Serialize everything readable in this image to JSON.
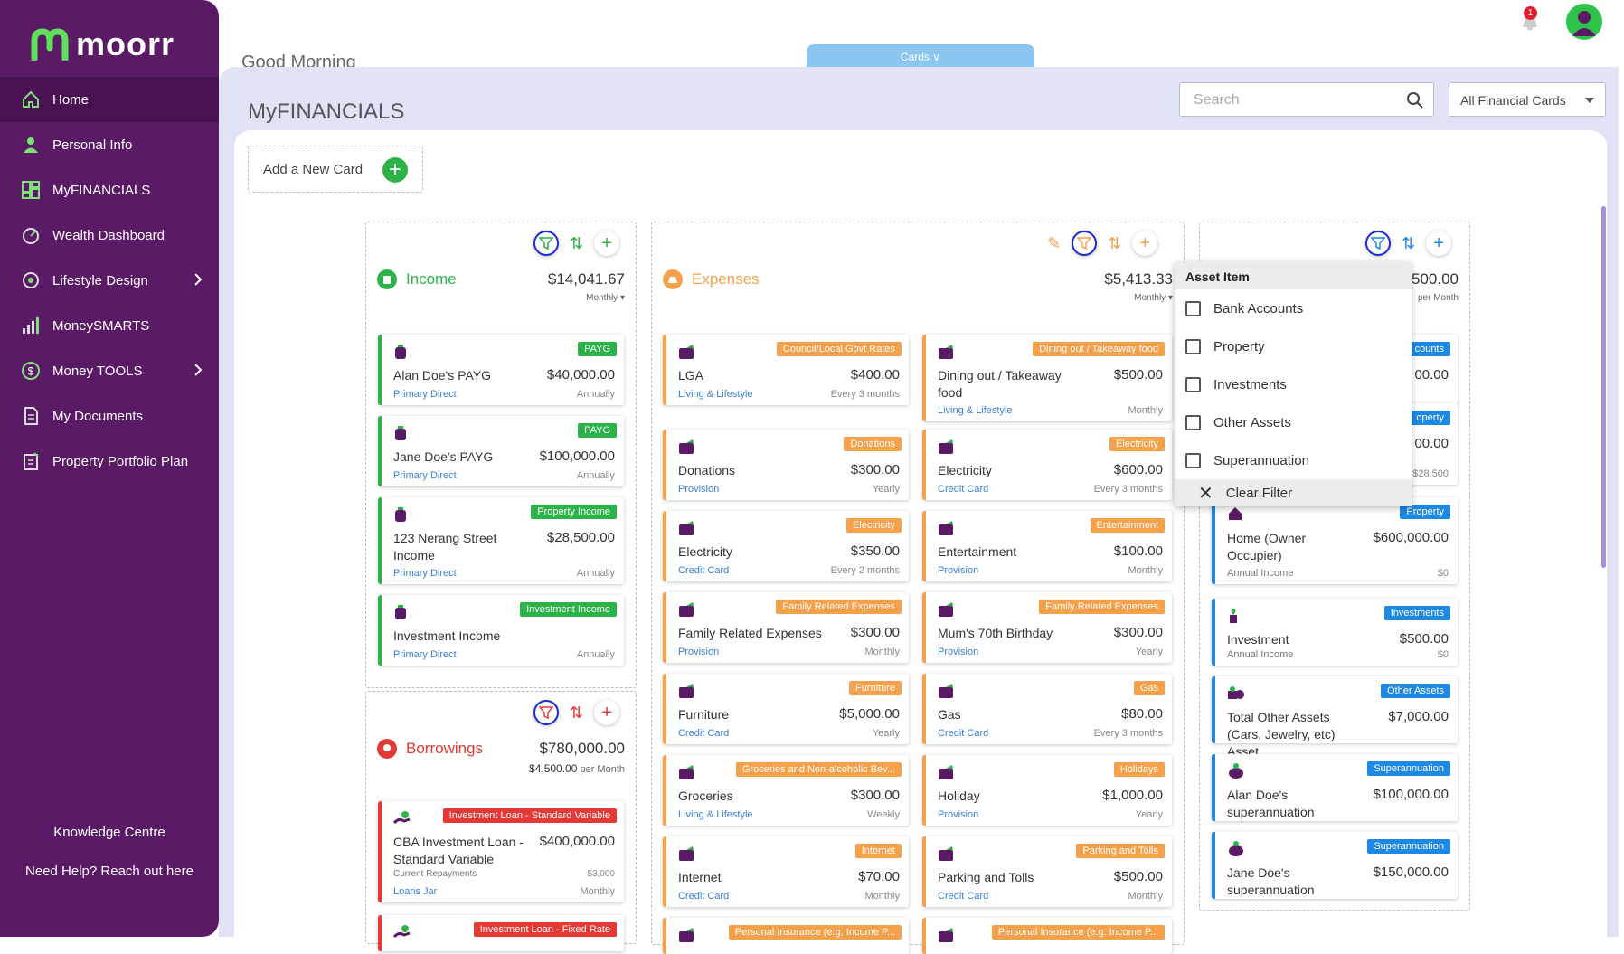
{
  "app": {
    "logo": "moorr",
    "greeting": "Good Morning",
    "cards_tab": "Cards",
    "notification_count": "1"
  },
  "colors": {
    "sidebar": "#5b1a66",
    "income": "#2bb34a",
    "expenses": "#f5a04a",
    "borrowings": "#e53935",
    "assets": "#1e88e5",
    "accent": "#5b1a66"
  },
  "sidebar": {
    "items": [
      {
        "label": "Home",
        "icon": "home-icon"
      },
      {
        "label": "Personal Info",
        "icon": "person-icon"
      },
      {
        "label": "MyFINANCIALS",
        "icon": "dashboard-icon"
      },
      {
        "label": "Wealth Dashboard",
        "icon": "gauge-icon"
      },
      {
        "label": "Lifestyle Design",
        "icon": "target-icon"
      },
      {
        "label": "MoneySMARTS",
        "icon": "bar-chart-icon"
      },
      {
        "label": "Money TOOLS",
        "icon": "dollar-icon"
      },
      {
        "label": "My Documents",
        "icon": "document-icon"
      },
      {
        "label": "Property Portfolio Plan",
        "icon": "clipboard-icon"
      }
    ],
    "knowledge": "Knowledge Centre",
    "help": "Need Help? Reach out here"
  },
  "page": {
    "title": "MyFINANCIALS",
    "search_placeholder": "Search",
    "filter": "All Financial Cards",
    "add_card": "Add a New Card"
  },
  "income": {
    "title": "Income",
    "total": "$14,041.67",
    "freq": "Monthly",
    "cards": [
      {
        "badge": "PAYG",
        "name": "Alan Doe's PAYG",
        "amount": "$40,000.00",
        "source": "Primary Direct",
        "period": "Annually"
      },
      {
        "badge": "PAYG",
        "name": "Jane Doe's PAYG",
        "amount": "$100,000.00",
        "source": "Primary Direct",
        "period": "Annually"
      },
      {
        "badge": "Property Income",
        "name": "123 Nerang Street Income",
        "amount": "$28,500.00",
        "source": "Primary Direct",
        "period": "Annually"
      },
      {
        "badge": "Investment Income",
        "name": "Investment Income",
        "amount": "",
        "source": "Primary Direct",
        "period": "Annually"
      }
    ]
  },
  "borrowings": {
    "title": "Borrowings",
    "total": "$780,000.00",
    "sub_amount": "$4,500.00",
    "sub_freq": "per Month",
    "cards": [
      {
        "badge": "Investment Loan - Standard Variable",
        "name": "CBA Investment Loan - Standard Variable",
        "amount": "$400,000.00",
        "repay_label": "Current Repayments",
        "repay_value": "$3,000",
        "source": "Loans Jar",
        "period": "Monthly"
      },
      {
        "badge": "Investment Loan - Fixed Rate"
      }
    ]
  },
  "expenses": {
    "title": "Expenses",
    "total": "$5,413.33",
    "freq": "Monthly",
    "cards_left": [
      {
        "badge": "Council/Local Govt Rates",
        "name": "LGA",
        "amount": "$400.00",
        "source": "Living & Lifestyle",
        "period": "Every 3 months"
      },
      {
        "badge": "Donations",
        "name": "Donations",
        "amount": "$300.00",
        "source": "Provision",
        "period": "Yearly"
      },
      {
        "badge": "Electricity",
        "name": "Electricity",
        "amount": "$350.00",
        "source": "Credit Card",
        "period": "Every 2 months"
      },
      {
        "badge": "Family Related Expenses",
        "name": "Family Related Expenses",
        "amount": "$300.00",
        "source": "Provision",
        "period": "Monthly"
      },
      {
        "badge": "Furniture",
        "name": "Furniture",
        "amount": "$5,000.00",
        "source": "Credit Card",
        "period": "Yearly"
      },
      {
        "badge": "Groceries and Non-alcoholic Bev...",
        "name": "Groceries",
        "amount": "$300.00",
        "source": "Living & Lifestyle",
        "period": "Weekly"
      },
      {
        "badge": "Internet",
        "name": "Internet",
        "amount": "$70.00",
        "source": "Credit Card",
        "period": "Monthly"
      },
      {
        "badge": "Personal Insurance (e.g. Income P..."
      }
    ],
    "cards_right": [
      {
        "badge": "Dining out / Takeaway food",
        "name": "Dining out / Takeaway food",
        "amount": "$500.00",
        "source": "Living & Lifestyle",
        "period": "Monthly"
      },
      {
        "badge": "Electricity",
        "name": "Electricity",
        "amount": "$600.00",
        "source": "Credit Card",
        "period": "Every 3 months"
      },
      {
        "badge": "Entertainment",
        "name": "Entertainment",
        "amount": "$100.00",
        "source": "Provision",
        "period": "Monthly"
      },
      {
        "badge": "Family Related Expenses",
        "name": "Mum's 70th Birthday",
        "amount": "$300.00",
        "source": "Provision",
        "period": "Yearly"
      },
      {
        "badge": "Gas",
        "name": "Gas",
        "amount": "$80.00",
        "source": "Credit Card",
        "period": "Every 3 months"
      },
      {
        "badge": "Holidays",
        "name": "Holiday",
        "amount": "$1,000.00",
        "source": "Provision",
        "period": "Yearly"
      },
      {
        "badge": "Parking and Tolls",
        "name": "Parking and Tolls",
        "amount": "$500.00",
        "source": "Credit Card",
        "period": "Monthly"
      },
      {
        "badge": "Personal Insurance (e.g. Income P..."
      }
    ]
  },
  "assets": {
    "total": "500.00",
    "freq": "per Month",
    "hidden_cards": [
      {
        "badge": "counts",
        "amount": "00.00"
      },
      {
        "badge": "operty",
        "amount": "00.00",
        "income": "$28,500"
      }
    ],
    "cards": [
      {
        "badge": "Property",
        "name": "Home (Owner Occupier)",
        "amount": "$600,000.00",
        "sub": "Annual Income",
        "subval": "$0"
      },
      {
        "badge": "Investments",
        "name": "Investment",
        "amount": "$500.00",
        "sub": "Annual Income",
        "subval": "$0"
      },
      {
        "badge": "Other Assets",
        "name": "Total Other Assets (Cars, Jewelry, etc) Asset",
        "amount": "$7,000.00"
      },
      {
        "badge": "Superannuation",
        "name": "Alan Doe's superannuation",
        "amount": "$100,000.00"
      },
      {
        "badge": "Superannuation",
        "name": "Jane Doe's superannuation",
        "amount": "$150,000.00"
      }
    ]
  },
  "asset_filter": {
    "title": "Asset Item",
    "options": [
      "Bank Accounts",
      "Property",
      "Investments",
      "Other Assets",
      "Superannuation"
    ],
    "clear": "Clear Filter"
  }
}
